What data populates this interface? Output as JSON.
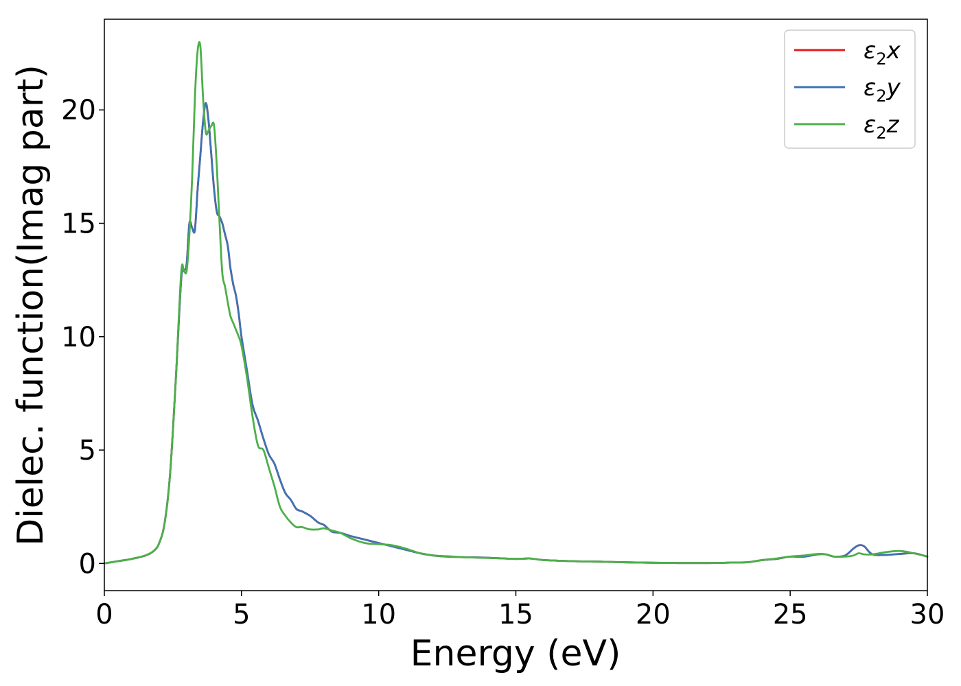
{
  "chart_data": {
    "type": "line",
    "title": "",
    "xlabel": "Energy (eV)",
    "ylabel": "Dielec. function(Imag part)",
    "xlim": [
      0,
      30
    ],
    "ylim": [
      -1.2,
      24.0
    ],
    "xticks": [
      0,
      5,
      10,
      15,
      20,
      25,
      30
    ],
    "yticks": [
      0,
      5,
      10,
      15,
      20
    ],
    "grid": false,
    "legend_position": "top-right",
    "series": [
      {
        "name": "ε₂x",
        "label_main": "ε",
        "label_sub": "2",
        "label_suffix": "x",
        "color": "#e41a1c",
        "x": [
          0,
          0.5,
          1.0,
          1.5,
          1.8,
          2.0,
          2.2,
          2.4,
          2.6,
          2.8,
          2.9,
          3.0,
          3.1,
          3.2,
          3.3,
          3.4,
          3.5,
          3.6,
          3.7,
          3.8,
          3.9,
          4.0,
          4.1,
          4.2,
          4.3,
          4.4,
          4.5,
          4.6,
          4.7,
          4.8,
          4.9,
          5.0,
          5.2,
          5.4,
          5.6,
          5.8,
          6.0,
          6.2,
          6.4,
          6.6,
          6.8,
          7.0,
          7.2,
          7.5,
          7.8,
          8.0,
          8.3,
          8.6,
          9.0,
          9.5,
          10.0,
          10.5,
          11.0,
          11.5,
          12.0,
          12.5,
          13.0,
          14.0,
          15.0,
          15.5,
          16.0,
          17.0,
          18.0,
          19.0,
          20.0,
          21.0,
          22.0,
          23.0,
          23.5,
          24.0,
          24.5,
          25.0,
          25.5,
          26.0,
          26.3,
          26.6,
          27.0,
          27.3,
          27.5,
          27.7,
          28.0,
          28.5,
          29.0,
          29.5,
          30.0
        ],
        "values": [
          0,
          0.1,
          0.2,
          0.35,
          0.55,
          0.9,
          1.8,
          4.0,
          8.0,
          12.5,
          12.9,
          13.2,
          15.0,
          14.8,
          14.7,
          16.5,
          18.0,
          19.5,
          20.3,
          19.5,
          18.0,
          16.5,
          15.5,
          15.3,
          15.0,
          14.5,
          14.0,
          13.0,
          12.3,
          11.8,
          11.0,
          10.0,
          8.5,
          7.0,
          6.3,
          5.5,
          4.8,
          4.4,
          3.7,
          3.1,
          2.8,
          2.4,
          2.3,
          2.1,
          1.8,
          1.7,
          1.4,
          1.35,
          1.2,
          1.05,
          0.9,
          0.75,
          0.6,
          0.45,
          0.35,
          0.3,
          0.28,
          0.25,
          0.2,
          0.22,
          0.15,
          0.1,
          0.08,
          0.05,
          0.03,
          0.02,
          0.02,
          0.04,
          0.06,
          0.15,
          0.2,
          0.3,
          0.3,
          0.4,
          0.4,
          0.3,
          0.35,
          0.65,
          0.8,
          0.75,
          0.4,
          0.38,
          0.42,
          0.45,
          0.3
        ]
      },
      {
        "name": "ε₂y",
        "label_main": "ε",
        "label_sub": "2",
        "label_suffix": "y",
        "color": "#3f73b4",
        "x": [
          0,
          0.5,
          1.0,
          1.5,
          1.8,
          2.0,
          2.2,
          2.4,
          2.6,
          2.8,
          2.9,
          3.0,
          3.1,
          3.2,
          3.3,
          3.4,
          3.5,
          3.6,
          3.7,
          3.8,
          3.9,
          4.0,
          4.1,
          4.2,
          4.3,
          4.4,
          4.5,
          4.6,
          4.7,
          4.8,
          4.9,
          5.0,
          5.2,
          5.4,
          5.6,
          5.8,
          6.0,
          6.2,
          6.4,
          6.6,
          6.8,
          7.0,
          7.2,
          7.5,
          7.8,
          8.0,
          8.3,
          8.6,
          9.0,
          9.5,
          10.0,
          10.5,
          11.0,
          11.5,
          12.0,
          12.5,
          13.0,
          14.0,
          15.0,
          15.5,
          16.0,
          17.0,
          18.0,
          19.0,
          20.0,
          21.0,
          22.0,
          23.0,
          23.5,
          24.0,
          24.5,
          25.0,
          25.5,
          26.0,
          26.3,
          26.6,
          27.0,
          27.3,
          27.5,
          27.7,
          28.0,
          28.5,
          29.0,
          29.5,
          30.0
        ],
        "values": [
          0,
          0.1,
          0.2,
          0.35,
          0.55,
          0.9,
          1.8,
          4.0,
          8.0,
          12.5,
          12.9,
          13.2,
          15.0,
          14.8,
          14.7,
          16.5,
          18.0,
          19.5,
          20.3,
          19.5,
          18.0,
          16.5,
          15.5,
          15.3,
          15.0,
          14.5,
          14.0,
          13.0,
          12.3,
          11.8,
          11.0,
          10.0,
          8.5,
          7.0,
          6.3,
          5.5,
          4.8,
          4.4,
          3.7,
          3.1,
          2.8,
          2.4,
          2.3,
          2.1,
          1.8,
          1.7,
          1.4,
          1.35,
          1.2,
          1.05,
          0.9,
          0.75,
          0.6,
          0.45,
          0.35,
          0.3,
          0.28,
          0.25,
          0.2,
          0.22,
          0.15,
          0.1,
          0.08,
          0.05,
          0.03,
          0.02,
          0.02,
          0.04,
          0.06,
          0.15,
          0.2,
          0.3,
          0.3,
          0.4,
          0.4,
          0.3,
          0.35,
          0.65,
          0.8,
          0.75,
          0.4,
          0.38,
          0.42,
          0.45,
          0.3
        ]
      },
      {
        "name": "ε₂z",
        "label_main": "ε",
        "label_sub": "2",
        "label_suffix": "z",
        "color": "#4daf4a",
        "x": [
          0,
          0.5,
          1.0,
          1.5,
          1.8,
          2.0,
          2.2,
          2.4,
          2.6,
          2.8,
          2.9,
          3.0,
          3.1,
          3.2,
          3.3,
          3.4,
          3.5,
          3.6,
          3.7,
          3.8,
          3.9,
          4.0,
          4.1,
          4.2,
          4.3,
          4.4,
          4.5,
          4.6,
          4.7,
          4.8,
          4.9,
          5.0,
          5.2,
          5.4,
          5.6,
          5.8,
          6.0,
          6.2,
          6.4,
          6.6,
          6.8,
          7.0,
          7.2,
          7.5,
          7.8,
          8.0,
          8.3,
          8.6,
          9.0,
          9.5,
          10.0,
          10.5,
          11.0,
          11.5,
          12.0,
          12.5,
          13.0,
          14.0,
          15.0,
          15.5,
          16.0,
          17.0,
          18.0,
          19.0,
          20.0,
          21.0,
          22.0,
          23.0,
          23.5,
          24.0,
          24.5,
          25.0,
          25.5,
          26.0,
          26.3,
          26.6,
          27.0,
          27.3,
          27.5,
          27.7,
          28.0,
          28.5,
          29.0,
          29.5,
          30.0
        ],
        "values": [
          0,
          0.1,
          0.2,
          0.35,
          0.55,
          0.9,
          1.8,
          4.0,
          8.0,
          12.8,
          12.9,
          12.9,
          14.5,
          17.0,
          20.5,
          22.6,
          22.8,
          20.5,
          19.0,
          19.1,
          19.3,
          19.3,
          17.5,
          15.0,
          12.8,
          12.2,
          11.5,
          10.9,
          10.6,
          10.3,
          10.0,
          9.6,
          8.2,
          6.5,
          5.2,
          5.0,
          4.2,
          3.4,
          2.5,
          2.1,
          1.8,
          1.6,
          1.6,
          1.5,
          1.5,
          1.55,
          1.45,
          1.35,
          1.1,
          0.9,
          0.85,
          0.8,
          0.65,
          0.45,
          0.35,
          0.32,
          0.28,
          0.24,
          0.2,
          0.22,
          0.15,
          0.1,
          0.08,
          0.05,
          0.03,
          0.02,
          0.02,
          0.04,
          0.06,
          0.15,
          0.22,
          0.3,
          0.35,
          0.42,
          0.4,
          0.3,
          0.3,
          0.35,
          0.45,
          0.4,
          0.4,
          0.5,
          0.55,
          0.45,
          0.3
        ]
      }
    ]
  }
}
